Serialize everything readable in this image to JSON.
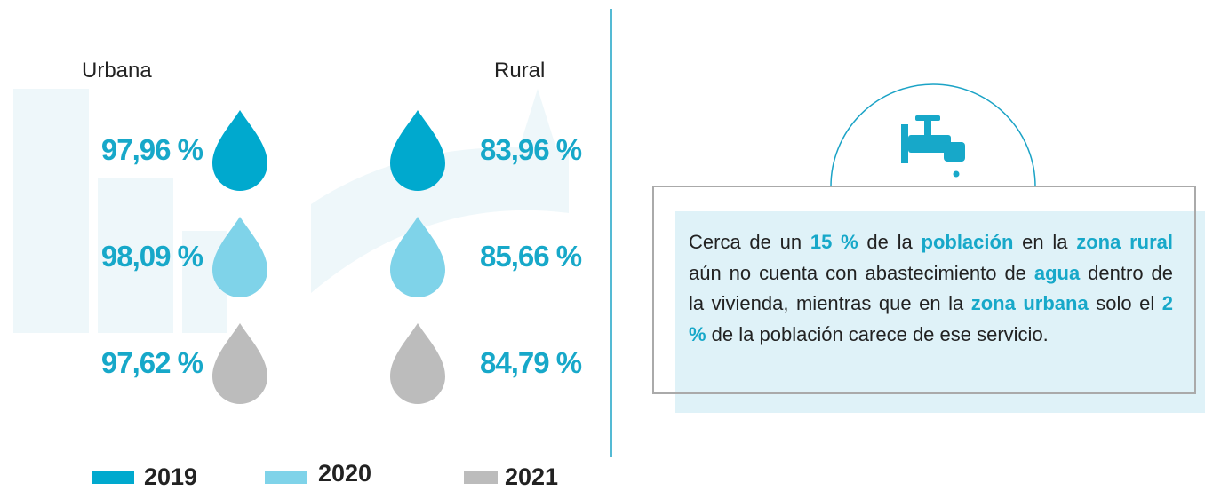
{
  "columns": [
    {
      "label": "Urbana",
      "values": [
        "97,96 %",
        "98,09 %",
        "97,62 %"
      ]
    },
    {
      "label": "Rural",
      "values": [
        "83,96 %",
        "85,66 %",
        "84,79 %"
      ]
    }
  ],
  "legend": [
    {
      "label": "2019",
      "color": "#00a9ce"
    },
    {
      "label": "2020",
      "color": "#7fd3e9"
    },
    {
      "label": "2021",
      "color": "#bcbcbc"
    }
  ],
  "note": {
    "parts": [
      {
        "text": "Cerca de un ",
        "bold": false
      },
      {
        "text": "15 %",
        "bold": true
      },
      {
        "text": " de la ",
        "bold": false
      },
      {
        "text": "población",
        "bold": true
      },
      {
        "text": " en la ",
        "bold": false
      },
      {
        "text": "zona rural",
        "bold": true
      },
      {
        "text": " aún no cuenta con abastecimiento de ",
        "bold": false
      },
      {
        "text": "agua",
        "bold": true
      },
      {
        "text": " dentro de la vivienda, mientras que en la ",
        "bold": false
      },
      {
        "text": "zona urbana",
        "bold": true
      },
      {
        "text": " solo el ",
        "bold": false
      },
      {
        "text": "2 %",
        "bold": true
      },
      {
        "text": " de la población carece de ese servicio.",
        "bold": false
      }
    ]
  }
}
